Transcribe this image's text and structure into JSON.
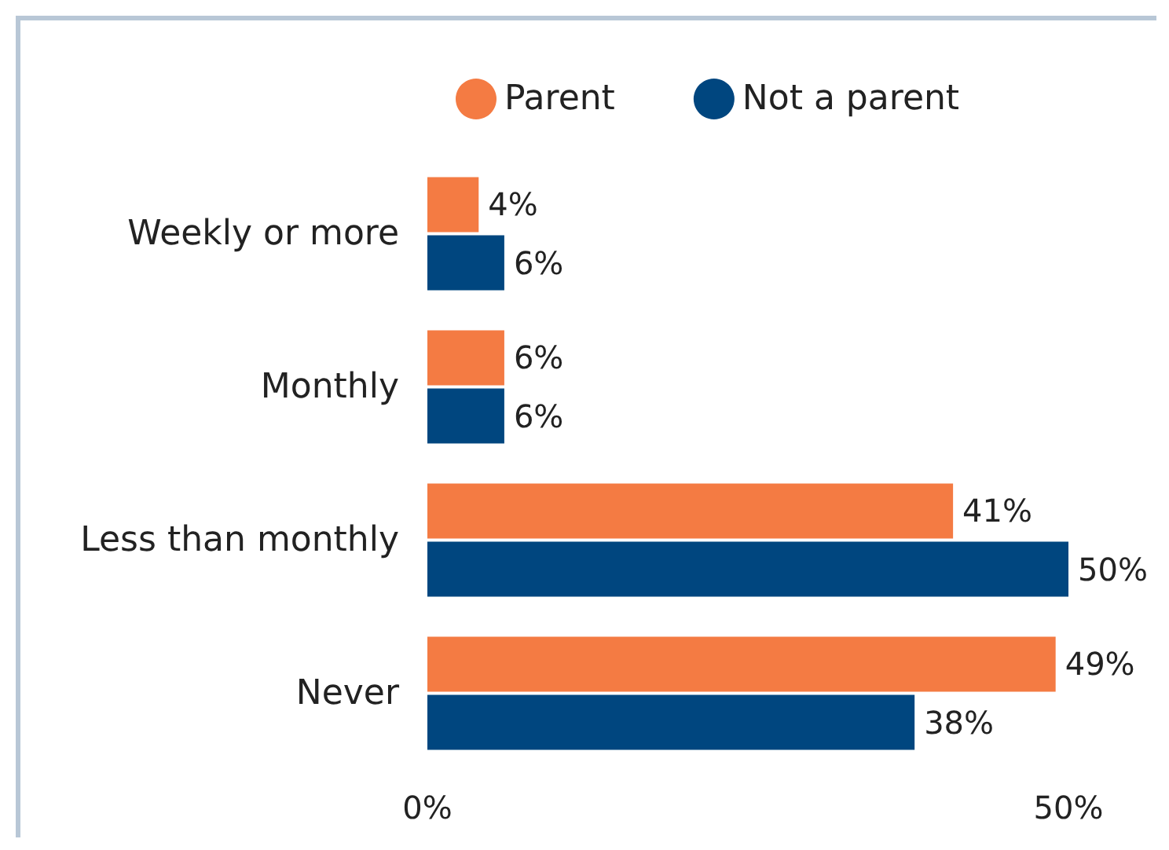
{
  "chart_data": {
    "type": "bar",
    "orientation": "horizontal",
    "categories": [
      "Weekly or more",
      "Monthly",
      "Less than monthly",
      "Never"
    ],
    "series": [
      {
        "name": "Parent",
        "color": "#f47b43",
        "values": [
          4,
          6,
          41,
          49
        ],
        "value_labels": [
          "4%",
          "6%",
          "41%",
          "49%"
        ]
      },
      {
        "name": "Not a parent",
        "color": "#00467f",
        "values": [
          6,
          6,
          50,
          38
        ],
        "value_labels": [
          "6%",
          "6%",
          "50%",
          "38%"
        ]
      }
    ],
    "xlim": [
      0,
      50
    ],
    "xticks": [
      {
        "value": 0,
        "label": "0%"
      },
      {
        "value": 50,
        "label": "50%"
      }
    ],
    "grid": false,
    "legend": "top"
  }
}
